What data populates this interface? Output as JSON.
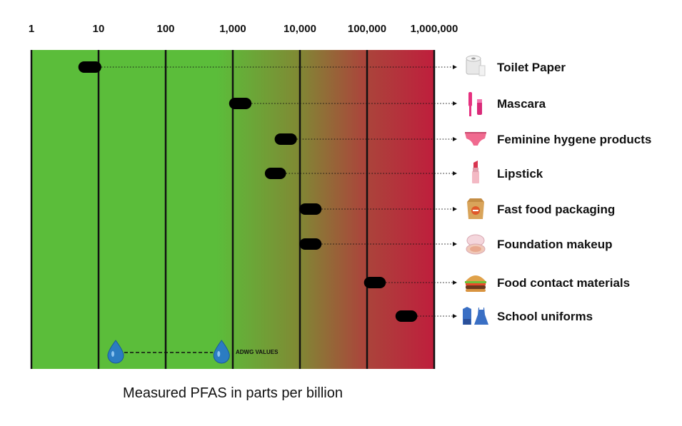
{
  "chart_data": {
    "type": "range",
    "scale": "log",
    "xlim": [
      1,
      1000000
    ],
    "xticks": [
      1,
      10,
      100,
      1000,
      10000,
      100000,
      1000000
    ],
    "tick_labels": [
      "1",
      "10",
      "100",
      "1,000",
      "10,000",
      "100,000",
      "1,000,000"
    ],
    "xlabel": "Measured PFAS in parts per billion",
    "gradient_colors": [
      "#5bbd3a",
      "#bf1e3c"
    ],
    "bar_color": "#000000",
    "categories": [
      {
        "label": "Toilet Paper",
        "icon": "toilet-paper-icon",
        "min": 5,
        "max": 11
      },
      {
        "label": "Mascara",
        "icon": "mascara-icon",
        "min": 880,
        "max": 1900
      },
      {
        "label": "Feminine hygene products",
        "icon": "underwear-icon",
        "min": 4200,
        "max": 9000
      },
      {
        "label": "Lipstick",
        "icon": "lipstick-icon",
        "min": 3000,
        "max": 6200
      },
      {
        "label": "Fast food packaging",
        "icon": "food-bag-icon",
        "min": 9800,
        "max": 21000
      },
      {
        "label": "Foundation makeup",
        "icon": "compact-icon",
        "min": 9800,
        "max": 21000
      },
      {
        "label": "Food contact materials",
        "icon": "burger-icon",
        "min": 90000,
        "max": 190000
      },
      {
        "label": "School uniforms",
        "icon": "uniform-icon",
        "min": 265000,
        "max": 560000
      }
    ],
    "adwg": {
      "label": "ADWG VALUES",
      "min": 18,
      "max": 680
    }
  }
}
